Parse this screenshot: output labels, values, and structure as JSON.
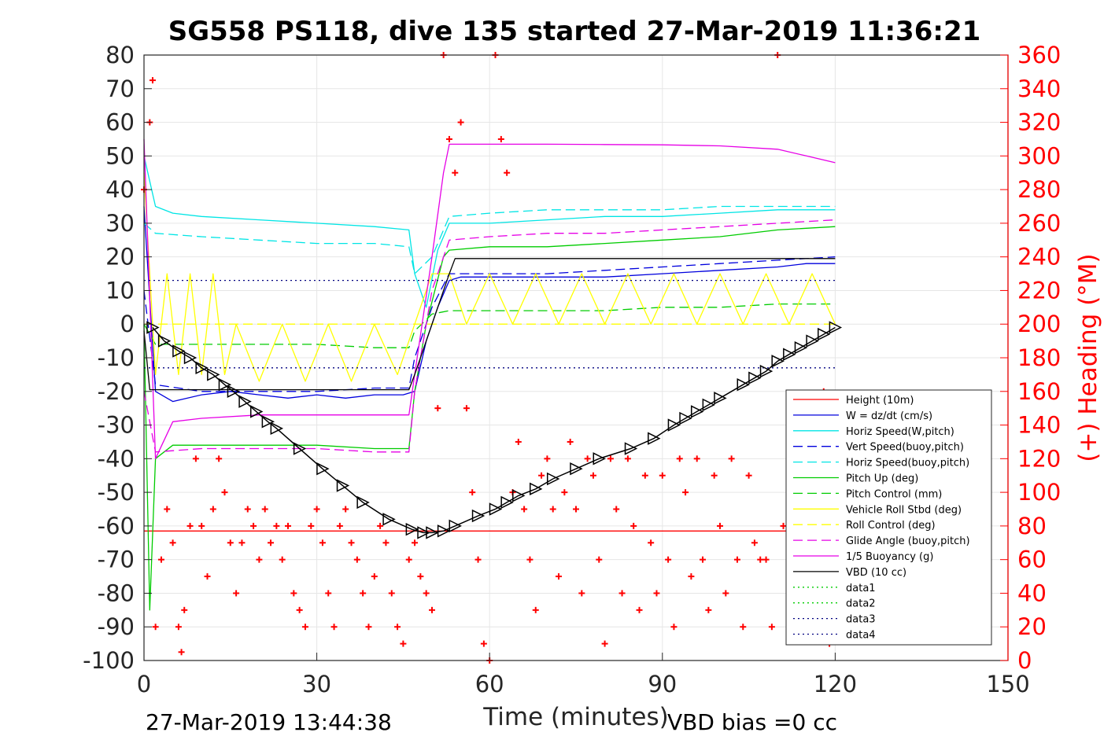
{
  "chart_data": {
    "type": "line",
    "title": "SG558 PS118, dive 135 started 27-Mar-2019 11:36:21",
    "xlabel": "Time (minutes)",
    "ylabel_right": "(+) Heading (°M)",
    "xlim": [
      0,
      150
    ],
    "ylim_left": [
      -100,
      80
    ],
    "ylim_right": [
      0,
      360
    ],
    "x_ticks": [
      "0",
      "30",
      "60",
      "90",
      "120",
      "150"
    ],
    "y_ticks_left": [
      "80",
      "70",
      "60",
      "50",
      "40",
      "30",
      "20",
      "10",
      "0",
      "-10",
      "-20",
      "-30",
      "-40",
      "-50",
      "-60",
      "-70",
      "-80",
      "-90",
      "-100"
    ],
    "y_ticks_right": [
      "360",
      "340",
      "320",
      "300",
      "280",
      "260",
      "240",
      "220",
      "200",
      "180",
      "160",
      "140",
      "120",
      "100",
      "80",
      "60",
      "40",
      "20",
      "0"
    ],
    "grid": true,
    "legend_position": "lower-right",
    "footer_left": "27-Mar-2019 13:44:38",
    "footer_right": "VBD bias =0 cc",
    "series": [
      {
        "name": "Height (10m)",
        "color": "#ff0000",
        "style": "solid",
        "x": [
          0,
          120
        ],
        "y": [
          -61.5,
          -61.5
        ]
      },
      {
        "name": "W = dz/dt (cm/s)",
        "color": "#0000dd",
        "style": "solid",
        "x": [
          0,
          2,
          5,
          10,
          15,
          20,
          25,
          30,
          35,
          40,
          45,
          47,
          49,
          51,
          53,
          55,
          60,
          70,
          80,
          90,
          100,
          110,
          115,
          120
        ],
        "y": [
          35,
          -20,
          -23,
          -21,
          -20,
          -21,
          -22,
          -21,
          -22,
          -21,
          -21,
          -20,
          -5,
          5,
          13,
          14,
          14,
          14,
          14,
          15,
          16,
          17,
          18,
          18
        ]
      },
      {
        "name": "Horiz Speed(W,pitch)",
        "color": "#00e5e5",
        "style": "solid",
        "x": [
          0,
          2,
          5,
          10,
          20,
          30,
          40,
          46,
          47,
          49,
          51,
          53,
          60,
          70,
          80,
          90,
          100,
          110,
          120
        ],
        "y": [
          50,
          35,
          33,
          32,
          31,
          30,
          29,
          28,
          15,
          5,
          22,
          30,
          30,
          31,
          32,
          32,
          33,
          34,
          34
        ]
      },
      {
        "name": "Vert Speed(buoy,pitch)",
        "color": "#0000dd",
        "style": "dash",
        "x": [
          0,
          2,
          10,
          20,
          30,
          40,
          46,
          47,
          50,
          53,
          60,
          70,
          80,
          90,
          100,
          110,
          120
        ],
        "y": [
          10,
          -18,
          -20,
          -20,
          -20,
          -19,
          -19,
          -10,
          5,
          15,
          15,
          15,
          16,
          17,
          18,
          19,
          20
        ]
      },
      {
        "name": "Horiz Speed(buoy,pitch)",
        "color": "#00e5e5",
        "style": "dash",
        "x": [
          0,
          2,
          10,
          20,
          30,
          40,
          46,
          47,
          50,
          53,
          60,
          70,
          80,
          90,
          100,
          110,
          120
        ],
        "y": [
          30,
          27,
          26,
          25,
          24,
          24,
          23,
          15,
          20,
          32,
          33,
          34,
          34,
          34,
          35,
          35,
          35
        ]
      },
      {
        "name": "Pitch Up (deg)",
        "color": "#00cc00",
        "style": "solid",
        "x": [
          0,
          1,
          2,
          5,
          10,
          20,
          30,
          40,
          46,
          47,
          49,
          52,
          53,
          60,
          70,
          80,
          90,
          100,
          110,
          120
        ],
        "y": [
          0,
          -85,
          -40,
          -36,
          -36,
          -36,
          -36,
          -37,
          -37,
          -20,
          0,
          20,
          22,
          23,
          23,
          24,
          25,
          26,
          28,
          29
        ]
      },
      {
        "name": "Pitch Control (mm)",
        "color": "#00cc00",
        "style": "dash",
        "x": [
          0,
          2,
          10,
          20,
          30,
          40,
          46,
          47,
          50,
          53,
          60,
          70,
          80,
          90,
          100,
          110,
          120
        ],
        "y": [
          0,
          -6,
          -6,
          -6,
          -6,
          -7,
          -7,
          -2,
          3,
          4,
          4,
          4,
          4,
          5,
          5,
          6,
          6
        ]
      },
      {
        "name": "Vehicle Roll Stbd (deg)",
        "color": "#ffff00",
        "style": "solid",
        "x": [
          0,
          2,
          4,
          6,
          8,
          10,
          12,
          14,
          16,
          20,
          24,
          28,
          32,
          36,
          40,
          44,
          47,
          50,
          53,
          56,
          60,
          64,
          68,
          72,
          76,
          80,
          84,
          88,
          92,
          96,
          100,
          104,
          108,
          112,
          116,
          120
        ],
        "y": [
          45,
          -15,
          15,
          -15,
          15,
          -15,
          15,
          -15,
          0,
          -17,
          0,
          -17,
          0,
          -17,
          0,
          -15,
          0,
          15,
          15,
          0,
          15,
          0,
          15,
          0,
          15,
          0,
          15,
          0,
          15,
          0,
          15,
          0,
          15,
          0,
          15,
          0
        ]
      },
      {
        "name": "Roll Control (deg)",
        "color": "#ffff00",
        "style": "dash",
        "x": [
          0,
          120
        ],
        "y": [
          0,
          0
        ]
      },
      {
        "name": "Glide Angle (buoy,pitch)",
        "color": "#e600e6",
        "style": "dash",
        "x": [
          0,
          2,
          10,
          20,
          30,
          40,
          46,
          47,
          50,
          53,
          60,
          70,
          80,
          90,
          100,
          110,
          120
        ],
        "y": [
          -20,
          -38,
          -37,
          -37,
          -37,
          -38,
          -38,
          -20,
          10,
          25,
          26,
          27,
          27,
          28,
          29,
          30,
          31
        ]
      },
      {
        "name": "1/5 Buoyancy (g)",
        "color": "#e600e6",
        "style": "solid",
        "x": [
          0,
          2,
          5,
          10,
          20,
          30,
          40,
          46,
          47,
          50,
          52,
          53,
          60,
          70,
          80,
          90,
          100,
          110,
          115,
          120
        ],
        "y": [
          55,
          -40,
          -29,
          -28,
          -27,
          -27,
          -27,
          -27,
          -15,
          20,
          45,
          53.5,
          53.5,
          53.5,
          53.4,
          53.3,
          53,
          52,
          50,
          48
        ]
      },
      {
        "name": "VBD (10 cc)",
        "color": "#000000",
        "style": "solid",
        "x": [
          0,
          1,
          2,
          46,
          47,
          53,
          54,
          120
        ],
        "y": [
          -2,
          -19.5,
          -19.5,
          -19.5,
          -15,
          15,
          19.5,
          19.5
        ]
      },
      {
        "name": "data1",
        "color": "#00cc00",
        "style": "dot",
        "x": [],
        "y": []
      },
      {
        "name": "data2",
        "color": "#00cc00",
        "style": "dot",
        "x": [],
        "y": []
      },
      {
        "name": "data3",
        "color": "#000080",
        "style": "dot",
        "x": [
          0,
          120
        ],
        "y": [
          13,
          13
        ]
      },
      {
        "name": "data4",
        "color": "#000080",
        "style": "dot",
        "x": [
          0,
          120
        ],
        "y": [
          -13,
          -13
        ]
      }
    ],
    "depth_markers": {
      "color": "#000000",
      "x": [
        1.5,
        3.5,
        6,
        8,
        10,
        12,
        14,
        15.5,
        17.5,
        19.5,
        21.5,
        23,
        27,
        31,
        34.5,
        38,
        42.5,
        46.5,
        48.5,
        50,
        52,
        54,
        58,
        61,
        63,
        65,
        68,
        71,
        75,
        79,
        84.5,
        88.5,
        92,
        94,
        96,
        98,
        100,
        104,
        106,
        108,
        110,
        112,
        114,
        116,
        118,
        120
      ],
      "y": [
        -1,
        -5,
        -8,
        -10,
        -13,
        -15,
        -18,
        -20,
        -23,
        -26,
        -29,
        -31,
        -37,
        -43,
        -48,
        -53,
        -58,
        -61,
        -62,
        -62,
        -61.5,
        -60,
        -57,
        -55,
        -53,
        -51,
        -49,
        -46,
        -43,
        -40,
        -37,
        -34,
        -30,
        -28,
        -26,
        -24,
        -22,
        -18,
        -16,
        -14,
        -11,
        -9,
        -7,
        -5,
        -3,
        -1
      ]
    },
    "heading": {
      "name": "(+) Heading",
      "color": "#ff0000",
      "axis": "right",
      "x": [
        0,
        1,
        1.5,
        2,
        3,
        4,
        5,
        6,
        6.5,
        7,
        8,
        9,
        10,
        11,
        12,
        13,
        14,
        15,
        16,
        17,
        18,
        19,
        20,
        21,
        22,
        23,
        24,
        25,
        26,
        27,
        28,
        29,
        30,
        31,
        32,
        33,
        34,
        35,
        36,
        37,
        38,
        39,
        40,
        41,
        42,
        43,
        44,
        45,
        46,
        47,
        48,
        49,
        50,
        51,
        52,
        53,
        54,
        55,
        56,
        57,
        58,
        59,
        60,
        61,
        62,
        63,
        64,
        65,
        66,
        67,
        68,
        69,
        70,
        71,
        72,
        73,
        74,
        75,
        76,
        77,
        78,
        79,
        80,
        81,
        82,
        83,
        84,
        85,
        86,
        87,
        88,
        89,
        90,
        91,
        92,
        93,
        94,
        95,
        96,
        97,
        98,
        99,
        100,
        101,
        102,
        103,
        104,
        105,
        106,
        107,
        108,
        109,
        110,
        111,
        112,
        113,
        114,
        115,
        116,
        117,
        118,
        119
      ],
      "y": [
        280,
        320,
        345,
        20,
        60,
        90,
        70,
        20,
        5,
        30,
        80,
        120,
        80,
        50,
        90,
        120,
        100,
        70,
        40,
        70,
        90,
        80,
        60,
        90,
        70,
        80,
        60,
        80,
        40,
        30,
        20,
        80,
        90,
        70,
        40,
        20,
        80,
        90,
        70,
        60,
        40,
        20,
        50,
        80,
        70,
        40,
        20,
        10,
        60,
        70,
        50,
        40,
        30,
        150,
        360,
        310,
        290,
        320,
        150,
        100,
        60,
        10,
        0,
        360,
        310,
        290,
        100,
        130,
        90,
        60,
        30,
        110,
        120,
        90,
        50,
        100,
        130,
        90,
        40,
        120,
        110,
        60,
        10,
        120,
        90,
        40,
        120,
        80,
        30,
        110,
        70,
        40,
        110,
        60,
        20,
        120,
        100,
        50,
        120,
        60,
        30,
        110,
        80,
        40,
        120,
        60,
        20,
        110,
        70,
        60,
        60,
        20,
        360,
        80,
        120,
        90,
        40,
        130,
        90,
        60,
        160,
        10
      ]
    }
  }
}
